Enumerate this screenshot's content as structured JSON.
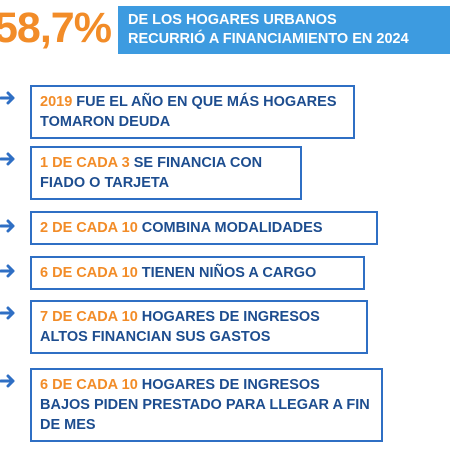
{
  "header": {
    "percent": "58,7%",
    "lines": [
      "DE LOS HOGARES URBANOS",
      "RECURRIÓ A FINANCIAMIENTO EN 2024"
    ]
  },
  "items": [
    {
      "highlight": "2019",
      "text": "FUE EL AÑO EN QUE MÁS HOGARES TOMARON DEUDA"
    },
    {
      "highlight": "1 DE CADA 3",
      "text": "SE FINANCIA CON FIADO O TARJETA"
    },
    {
      "highlight": "2 DE CADA 10",
      "text": "COMBINA MODALIDADES"
    },
    {
      "highlight": "6 DE CADA 10",
      "text": "TIENEN NIÑOS A CARGO"
    },
    {
      "highlight": "7 DE CADA 10",
      "text": "HOGARES DE INGRESOS ALTOS FINANCIAN SUS GASTOS"
    },
    {
      "highlight": "6 DE CADA 10",
      "text": "HOGARES DE INGRESOS BAJOS PIDEN PRESTADO PARA LLEGAR A FIN DE MES"
    }
  ]
}
